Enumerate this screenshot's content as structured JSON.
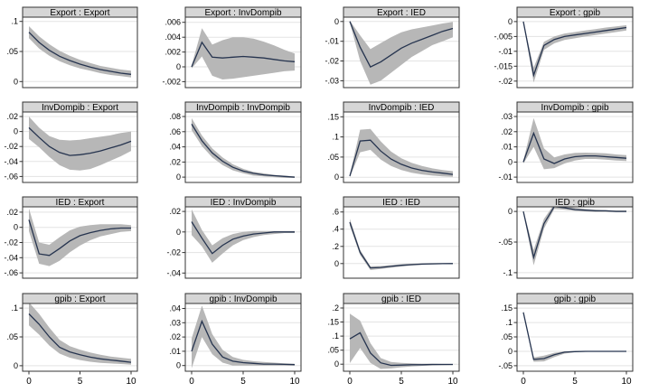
{
  "chart_data": {
    "type": "line",
    "layout_hint": "4x4 panel of impulse-response plots, shaded confidence bands, grid on, no legend",
    "colors": {
      "title_bg": "#d6d6d6",
      "border": "#333333",
      "grid": "#e3e3e3",
      "band": "#b7b7b7",
      "line": "#26344f",
      "text": "#000000",
      "background": "#ffffff"
    },
    "x": [
      0,
      1,
      2,
      3,
      4,
      5,
      6,
      7,
      8,
      9,
      10
    ],
    "xtick_values": [
      0,
      5,
      10
    ],
    "xtick_labels": [
      "0",
      "5",
      "10"
    ],
    "xlim": [
      0,
      10
    ],
    "plots": [
      {
        "title": "Export : Export",
        "ytick_values": [
          0.1,
          0.05,
          0
        ],
        "ytick_labels": [
          ".1",
          ".05",
          "0"
        ],
        "ylim": [
          -0.01,
          0.107
        ],
        "line": [
          0.082,
          0.065,
          0.052,
          0.042,
          0.035,
          0.029,
          0.024,
          0.02,
          0.017,
          0.014,
          0.012
        ],
        "upper": [
          0.092,
          0.075,
          0.062,
          0.051,
          0.043,
          0.036,
          0.031,
          0.026,
          0.023,
          0.02,
          0.018
        ],
        "lower": [
          0.072,
          0.055,
          0.043,
          0.034,
          0.027,
          0.022,
          0.018,
          0.014,
          0.011,
          0.009,
          0.007
        ]
      },
      {
        "title": "Export : InvDompib",
        "ytick_values": [
          0.006,
          0.004,
          0.002,
          0,
          -0.002
        ],
        "ytick_labels": [
          ".006",
          ".004",
          ".002",
          "0",
          "-.002"
        ],
        "ylim": [
          -0.0028,
          0.0067
        ],
        "line": [
          0,
          0.0033,
          0.0013,
          0.0012,
          0.0013,
          0.0014,
          0.0013,
          0.0012,
          0.001,
          0.0008,
          0.0007
        ],
        "upper": [
          0.0002,
          0.0052,
          0.003,
          0.0036,
          0.004,
          0.004,
          0.0038,
          0.0034,
          0.0029,
          0.0023,
          0.0018
        ],
        "lower": [
          -0.0002,
          0.0014,
          -0.0012,
          -0.0017,
          -0.0016,
          -0.0014,
          -0.0012,
          -0.001,
          -0.0008,
          -0.0006,
          -0.0005
        ]
      },
      {
        "title": "Export : IED",
        "ytick_values": [
          0,
          -0.01,
          -0.02,
          -0.03
        ],
        "ytick_labels": [
          "0",
          "-.01",
          "-.02",
          "-.03"
        ],
        "ylim": [
          -0.0335,
          0.0022
        ],
        "line": [
          0,
          -0.013,
          -0.023,
          -0.0205,
          -0.017,
          -0.0135,
          -0.011,
          -0.009,
          -0.007,
          -0.005,
          -0.0035
        ],
        "upper": [
          0.0005,
          -0.007,
          -0.014,
          -0.011,
          -0.008,
          -0.0055,
          -0.004,
          -0.003,
          -0.002,
          -0.001,
          -0.0002
        ],
        "lower": [
          -0.0005,
          -0.02,
          -0.032,
          -0.03,
          -0.026,
          -0.022,
          -0.018,
          -0.015,
          -0.012,
          -0.01,
          -0.008
        ]
      },
      {
        "title": "Export : gpib",
        "ytick_values": [
          0,
          -0.005,
          -0.01,
          -0.015,
          -0.02
        ],
        "ytick_labels": [
          "0",
          "-.005",
          "-.01",
          "-.015",
          "-.02"
        ],
        "ylim": [
          -0.0222,
          0.0015
        ],
        "line": [
          0,
          -0.018,
          -0.008,
          -0.006,
          -0.005,
          -0.0045,
          -0.004,
          -0.0035,
          -0.003,
          -0.0025,
          -0.002
        ],
        "upper": [
          0.0002,
          -0.0155,
          -0.0068,
          -0.005,
          -0.004,
          -0.0035,
          -0.003,
          -0.0025,
          -0.002,
          -0.0016,
          -0.0012
        ],
        "lower": [
          -0.0002,
          -0.0205,
          -0.0095,
          -0.0073,
          -0.0062,
          -0.0056,
          -0.005,
          -0.0045,
          -0.004,
          -0.0035,
          -0.003
        ]
      },
      {
        "title": "InvDompib : Export",
        "ytick_values": [
          0.02,
          0,
          -0.02,
          -0.04,
          -0.06
        ],
        "ytick_labels": [
          ".02",
          "0",
          "-.02",
          "-.04",
          "-.06"
        ],
        "ylim": [
          -0.068,
          0.026
        ],
        "line": [
          0.005,
          -0.008,
          -0.02,
          -0.028,
          -0.032,
          -0.031,
          -0.029,
          -0.026,
          -0.022,
          -0.018,
          -0.013
        ],
        "upper": [
          0.02,
          0.005,
          -0.006,
          -0.011,
          -0.012,
          -0.011,
          -0.009,
          -0.007,
          -0.005,
          -0.002,
          0.0
        ],
        "lower": [
          -0.01,
          -0.021,
          -0.034,
          -0.045,
          -0.051,
          -0.052,
          -0.05,
          -0.045,
          -0.039,
          -0.033,
          -0.026
        ]
      },
      {
        "title": "InvDompib : InvDompib",
        "ytick_values": [
          0.08,
          0.06,
          0.04,
          0.02,
          0
        ],
        "ytick_labels": [
          ".08",
          ".06",
          ".04",
          ".02",
          "0"
        ],
        "ylim": [
          -0.007,
          0.086
        ],
        "line": [
          0.07,
          0.048,
          0.032,
          0.021,
          0.013,
          0.008,
          0.005,
          0.003,
          0.002,
          0.001,
          0.0
        ],
        "upper": [
          0.078,
          0.055,
          0.038,
          0.026,
          0.017,
          0.011,
          0.007,
          0.005,
          0.003,
          0.002,
          0.001
        ],
        "lower": [
          0.062,
          0.041,
          0.026,
          0.016,
          0.009,
          0.005,
          0.002,
          0.001,
          0.0,
          -0.001,
          -0.001
        ]
      },
      {
        "title": "InvDompib : IED",
        "ytick_values": [
          0.15,
          0.1,
          0.05,
          0
        ],
        "ytick_labels": [
          ".15",
          ".1",
          ".05",
          "0"
        ],
        "ylim": [
          -0.013,
          0.162
        ],
        "line": [
          0.003,
          0.09,
          0.092,
          0.065,
          0.045,
          0.032,
          0.023,
          0.017,
          0.013,
          0.01,
          0.007
        ],
        "upper": [
          0.006,
          0.118,
          0.12,
          0.089,
          0.064,
          0.047,
          0.036,
          0.028,
          0.022,
          0.018,
          0.015
        ],
        "lower": [
          0.0,
          0.062,
          0.068,
          0.044,
          0.028,
          0.018,
          0.011,
          0.007,
          0.004,
          0.002,
          0.001
        ]
      },
      {
        "title": "InvDompib : gpib",
        "ytick_values": [
          0.03,
          0.02,
          0.01,
          0,
          -0.01
        ],
        "ytick_labels": [
          ".03",
          ".02",
          ".01",
          "0",
          "-.01"
        ],
        "ylim": [
          -0.0135,
          0.033
        ],
        "line": [
          0,
          0.019,
          0.002,
          -0.001,
          0.002,
          0.0035,
          0.004,
          0.004,
          0.0035,
          0.003,
          0.0025
        ],
        "upper": [
          0.001,
          0.029,
          0.009,
          0.003,
          0.005,
          0.006,
          0.0062,
          0.006,
          0.0057,
          0.005,
          0.0045
        ],
        "lower": [
          -0.001,
          0.01,
          -0.0048,
          -0.004,
          -0.001,
          0.001,
          0.002,
          0.002,
          0.0016,
          0.001,
          0.0006
        ]
      },
      {
        "title": "IED : Export",
        "ytick_values": [
          0.02,
          0,
          -0.02,
          -0.04,
          -0.06
        ],
        "ytick_labels": [
          ".02",
          "0",
          "-.02",
          "-.04",
          "-.06"
        ],
        "ylim": [
          -0.067,
          0.027
        ],
        "line": [
          0.01,
          -0.035,
          -0.037,
          -0.028,
          -0.018,
          -0.011,
          -0.007,
          -0.004,
          -0.002,
          -0.001,
          -0.001
        ],
        "upper": [
          0.025,
          -0.02,
          -0.023,
          -0.013,
          -0.004,
          0.001,
          0.003,
          0.004,
          0.004,
          0.004,
          0.003
        ],
        "lower": [
          -0.005,
          -0.048,
          -0.051,
          -0.044,
          -0.033,
          -0.024,
          -0.017,
          -0.012,
          -0.009,
          -0.006,
          -0.005
        ]
      },
      {
        "title": "IED : InvDompib",
        "ytick_values": [
          0.02,
          0,
          -0.02,
          -0.04
        ],
        "ytick_labels": [
          ".02",
          "0",
          "-.02",
          "-.04"
        ],
        "ylim": [
          -0.045,
          0.0245
        ],
        "line": [
          0.01,
          -0.006,
          -0.021,
          -0.013,
          -0.007,
          -0.004,
          -0.002,
          -0.001,
          0.0,
          0.0,
          0.0
        ],
        "upper": [
          0.022,
          0.002,
          -0.013,
          -0.006,
          -0.002,
          0.0,
          0.001,
          0.001,
          0.001,
          0.001,
          0.001
        ],
        "lower": [
          -0.003,
          -0.014,
          -0.03,
          -0.021,
          -0.013,
          -0.008,
          -0.005,
          -0.003,
          -0.002,
          -0.001,
          -0.001
        ]
      },
      {
        "title": "IED : IED",
        "ytick_values": [
          0.6,
          0.4,
          0.2,
          0
        ],
        "ytick_labels": [
          ".6",
          ".4",
          ".2",
          "0"
        ],
        "ylim": [
          -0.17,
          0.66
        ],
        "line": [
          0.48,
          0.13,
          -0.05,
          -0.045,
          -0.032,
          -0.02,
          -0.012,
          -0.006,
          -0.003,
          -0.001,
          0.0
        ],
        "upper": [
          0.52,
          0.16,
          -0.03,
          -0.028,
          -0.018,
          -0.008,
          -0.002,
          0.003,
          0.005,
          0.006,
          0.008
        ],
        "lower": [
          0.44,
          0.1,
          -0.075,
          -0.063,
          -0.048,
          -0.034,
          -0.023,
          -0.015,
          -0.01,
          -0.007,
          -0.005
        ]
      },
      {
        "title": "IED : gpib",
        "ytick_values": [
          0,
          -0.05,
          -0.1
        ],
        "ytick_labels": [
          "0",
          "-.05",
          "-.1"
        ],
        "ylim": [
          -0.109,
          0.0075
        ],
        "line": [
          0,
          -0.075,
          -0.02,
          0.008,
          0.006,
          0.003,
          0.002,
          0.001,
          0.001,
          0.0,
          0.0
        ],
        "upper": [
          0.002,
          -0.063,
          -0.012,
          0.012,
          0.009,
          0.006,
          0.004,
          0.003,
          0.002,
          0.002,
          0.002
        ],
        "lower": [
          -0.002,
          -0.088,
          -0.028,
          0.004,
          0.003,
          0.001,
          0.0,
          -0.001,
          -0.001,
          -0.001,
          -0.001
        ]
      },
      {
        "title": "gpib : Export",
        "ytick_values": [
          0.1,
          0.05,
          0
        ],
        "ytick_labels": [
          ".1",
          ".05",
          "0"
        ],
        "ylim": [
          -0.0095,
          0.108
        ],
        "line": [
          0.09,
          0.072,
          0.05,
          0.032,
          0.024,
          0.019,
          0.015,
          0.012,
          0.01,
          0.008,
          0.006
        ],
        "upper": [
          0.11,
          0.09,
          0.066,
          0.045,
          0.034,
          0.028,
          0.023,
          0.019,
          0.016,
          0.014,
          0.012
        ],
        "lower": [
          0.07,
          0.054,
          0.035,
          0.021,
          0.014,
          0.01,
          0.007,
          0.005,
          0.004,
          0.003,
          0.002
        ]
      },
      {
        "title": "gpib : InvDompib",
        "ytick_values": [
          0.04,
          0.03,
          0.02,
          0.01,
          0
        ],
        "ytick_labels": [
          ".04",
          ".03",
          ".02",
          ".01",
          "0"
        ],
        "ylim": [
          -0.004,
          0.0435
        ],
        "line": [
          0.01,
          0.031,
          0.015,
          0.006,
          0.003,
          0.002,
          0.0015,
          0.001,
          0.001,
          0.0008,
          0.0006
        ],
        "upper": [
          0.019,
          0.042,
          0.022,
          0.011,
          0.006,
          0.004,
          0.003,
          0.0025,
          0.002,
          0.0015,
          0.0012
        ],
        "lower": [
          -0.002,
          0.02,
          0.008,
          0.002,
          0.0,
          0.0,
          0.0,
          0.0,
          0.0,
          0.0,
          0.0
        ]
      },
      {
        "title": "gpib : IED",
        "ytick_values": [
          0.2,
          0.15,
          0.1,
          0.05,
          0
        ],
        "ytick_labels": [
          ".2",
          ".15",
          ".1",
          ".05",
          "0"
        ],
        "ylim": [
          -0.025,
          0.216
        ],
        "line": [
          0.09,
          0.112,
          0.04,
          0.005,
          -0.004,
          -0.003,
          -0.002,
          -0.002,
          -0.001,
          -0.001,
          -0.001
        ],
        "upper": [
          0.18,
          0.155,
          0.075,
          0.022,
          0.008,
          0.005,
          0.003,
          0.002,
          0.002,
          0.001,
          0.001
        ],
        "lower": [
          0.004,
          0.058,
          0.005,
          -0.017,
          -0.015,
          -0.011,
          -0.008,
          -0.006,
          -0.005,
          -0.004,
          -0.003
        ]
      },
      {
        "title": "gpib : gpib",
        "ytick_values": [
          0.15,
          0.1,
          0.05,
          0,
          -0.05
        ],
        "ytick_labels": [
          ".15",
          ".1",
          ".05",
          "0",
          "-.05"
        ],
        "ylim": [
          -0.069,
          0.166
        ],
        "line": [
          0.135,
          -0.028,
          -0.025,
          -0.012,
          -0.003,
          -0.001,
          0.0,
          0.0,
          0.0,
          0.0,
          0.0
        ],
        "upper": [
          0.14,
          -0.021,
          -0.015,
          -0.005,
          0.0,
          0.001,
          0.001,
          0.001,
          0.001,
          0.001,
          0.001
        ],
        "lower": [
          0.13,
          -0.036,
          -0.035,
          -0.02,
          -0.008,
          -0.003,
          -0.002,
          -0.001,
          -0.001,
          -0.001,
          -0.001
        ]
      }
    ]
  }
}
